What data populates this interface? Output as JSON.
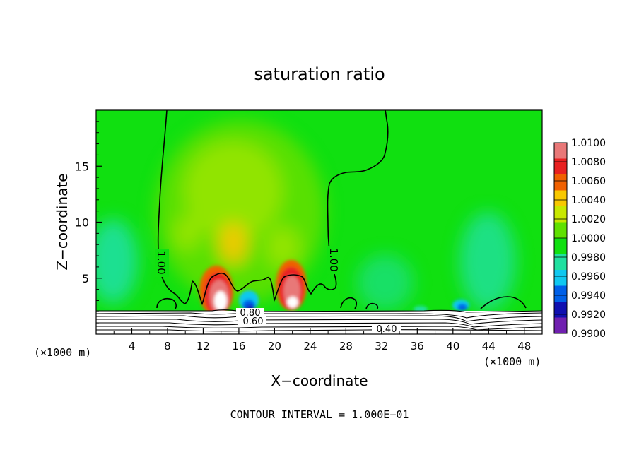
{
  "chart_data": {
    "type": "heatmap",
    "title": "saturation ratio",
    "xlabel": "X−coordinate",
    "ylabel": "Z−coordinate",
    "x_unit_left": "(×1000 m)",
    "x_unit_right": "(×1000 m)",
    "footer": "CONTOUR INTERVAL = 1.000E−01",
    "xlim": [
      0,
      50
    ],
    "ylim": [
      0,
      20
    ],
    "x_ticks": [
      4,
      8,
      12,
      16,
      20,
      24,
      28,
      32,
      36,
      40,
      44,
      48
    ],
    "y_ticks": [
      5,
      10,
      15
    ],
    "colorbar": {
      "levels": [
        "1.0100",
        "1.0080",
        "1.0060",
        "1.0040",
        "1.0020",
        "1.0000",
        "0.9980",
        "0.9960",
        "0.9940",
        "0.9920",
        "0.9900"
      ],
      "colors": [
        "#e87878",
        "#e82020",
        "#f06000",
        "#f8c800",
        "#c8e800",
        "#60e000",
        "#10e010",
        "#20e0a0",
        "#10c8f0",
        "#0060e8",
        "#1010b0",
        "#7020b0"
      ]
    },
    "background_color": "#10e010",
    "contour_labels": [
      "1.00",
      "1.00",
      "0.80",
      "0.60",
      "0.40"
    ],
    "features": [
      {
        "name": "warm-core-left",
        "x": 13.2,
        "z": 3.6,
        "value": 1.01
      },
      {
        "name": "warm-core-right",
        "x": 21.8,
        "z": 4.2,
        "value": 1.01
      },
      {
        "name": "dry-spot-1",
        "x": 17.5,
        "z": 2.6,
        "value": 0.992
      },
      {
        "name": "dry-spot-2",
        "x": 40.8,
        "z": 2.3,
        "value": 0.993
      }
    ]
  }
}
